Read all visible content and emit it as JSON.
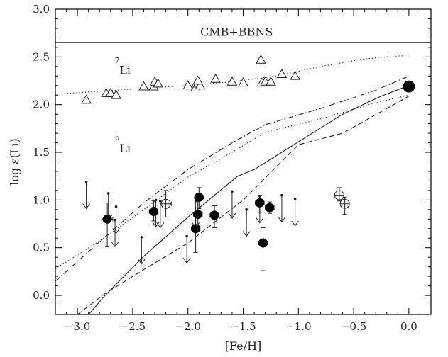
{
  "chart_data": {
    "type": "scatter",
    "xlabel": "[Fe/H]",
    "ylabel": "log ε(Li)",
    "xlim": [
      -3.2,
      0.2
    ],
    "ylim": [
      -0.2,
      3.0
    ],
    "xticks": [
      -3.0,
      -2.5,
      -2.0,
      -1.5,
      -1.0,
      -0.5,
      0.0
    ],
    "xtick_labels": [
      "−3.0",
      "−2.5",
      "−2.0",
      "−1.5",
      "−1.0",
      "−0.5",
      "0.0"
    ],
    "yticks": [
      0.0,
      0.5,
      1.0,
      1.5,
      2.0,
      2.5,
      3.0
    ],
    "ytick_labels": [
      "0.0",
      "0.5",
      "1.0",
      "1.5",
      "2.0",
      "2.5",
      "3.0"
    ],
    "annotations": {
      "cmb": "CMB+BBNS",
      "li7_mass": "7",
      "li7_sym": "Li",
      "li6_mass": "6",
      "li6_sym": "Li"
    },
    "cmb_level": 2.65,
    "li7_triangles": [
      [
        -2.92,
        2.05
      ],
      [
        -2.74,
        2.12
      ],
      [
        -2.7,
        2.12
      ],
      [
        -2.65,
        2.1
      ],
      [
        -2.4,
        2.19
      ],
      [
        -2.31,
        2.19
      ],
      [
        -2.3,
        2.24
      ],
      [
        -2.27,
        2.22
      ],
      [
        -2.0,
        2.2
      ],
      [
        -1.93,
        2.18
      ],
      [
        -1.91,
        2.22
      ],
      [
        -1.89,
        2.2
      ],
      [
        -1.91,
        2.25
      ],
      [
        -1.75,
        2.27
      ],
      [
        -1.6,
        2.24
      ],
      [
        -1.5,
        2.23
      ],
      [
        -1.34,
        2.47
      ],
      [
        -1.33,
        2.23
      ],
      [
        -1.3,
        2.24
      ],
      [
        -1.25,
        2.24
      ],
      [
        -1.15,
        2.32
      ],
      [
        -1.03,
        2.3
      ]
    ],
    "li6_filled": [
      {
        "x": -2.73,
        "y": 0.8,
        "xerr": 0.05,
        "yup": 0.17,
        "ydn": 0.29
      },
      {
        "x": -2.31,
        "y": 0.88,
        "xerr": 0.04,
        "yup": 0.11,
        "ydn": 0.1
      },
      {
        "x": -1.93,
        "y": 0.7,
        "xerr": 0.04,
        "yup": 0.09,
        "ydn": 0.25
      },
      {
        "x": -1.91,
        "y": 0.85,
        "xerr": 0.04,
        "yup": 0.15,
        "ydn": 0.18
      },
      {
        "x": -1.9,
        "y": 1.03,
        "xerr": 0.04,
        "yup": 0.1,
        "ydn": 0.12
      },
      {
        "x": -1.76,
        "y": 0.84,
        "xerr": 0.04,
        "yup": 0.1,
        "ydn": 0.13
      },
      {
        "x": -1.35,
        "y": 0.97,
        "xerr": 0.04,
        "yup": 0.08,
        "ydn": 0.1
      },
      {
        "x": -1.26,
        "y": 0.92,
        "xerr": 0.04,
        "yup": 0.06,
        "ydn": 0.06
      },
      {
        "x": -1.32,
        "y": 0.55,
        "xerr": 0.04,
        "yup": 0.16,
        "ydn": 0.29
      }
    ],
    "li6_open": [
      {
        "x": -2.2,
        "y": 0.96,
        "xerr": 0.05,
        "yup": 0.14,
        "ydn": 0.14
      },
      {
        "x": -0.63,
        "y": 1.05,
        "xerr": 0.04,
        "yup": 0.08,
        "ydn": 0.06
      },
      {
        "x": -0.58,
        "y": 0.96,
        "xerr": 0.04,
        "yup": 0.07,
        "ydn": 0.11
      }
    ],
    "li6_upper_limits": [
      [
        -2.92,
        1.19
      ],
      [
        -2.72,
        1.07
      ],
      [
        -2.66,
        0.79
      ],
      [
        -2.65,
        0.93
      ],
      [
        -2.42,
        0.61
      ],
      [
        -2.29,
        1.0
      ],
      [
        -2.25,
        0.99
      ],
      [
        -2.01,
        0.62
      ],
      [
        -1.93,
        0.99
      ],
      [
        -1.6,
        1.09
      ],
      [
        -1.47,
        0.9
      ],
      [
        -1.35,
        1.04
      ],
      [
        -1.15,
        1.05
      ],
      [
        -1.03,
        1.01
      ]
    ],
    "sun": [
      0.0,
      2.19
    ],
    "series": [
      {
        "style": "solid",
        "x": [
          -2.9,
          -2.75,
          -2.4,
          -2.0,
          -1.55,
          -1.4,
          -0.6,
          -0.25,
          0.0
        ],
        "y": [
          -0.2,
          0.0,
          0.41,
          0.82,
          1.25,
          1.32,
          1.9,
          2.09,
          2.2
        ]
      },
      {
        "style": "dashed",
        "x": [
          -3.0,
          -2.75,
          -2.4,
          -2.0,
          -1.5,
          -1.0,
          -0.6,
          0.0
        ],
        "y": [
          -0.2,
          0.02,
          0.27,
          0.55,
          1.0,
          1.58,
          1.7,
          2.09
        ]
      },
      {
        "style": "dotted",
        "x": [
          -3.2,
          -2.8,
          -2.4,
          -2.0,
          -1.6,
          -1.3,
          -0.8,
          -0.3,
          0.0
        ],
        "y": [
          0.28,
          0.57,
          0.9,
          1.24,
          1.5,
          1.71,
          1.85,
          2.02,
          2.1
        ]
      },
      {
        "style": "dashdot",
        "x": [
          -3.2,
          -2.8,
          -2.4,
          -2.0,
          -1.6,
          -1.3,
          -0.8,
          -0.3,
          0.0
        ],
        "y": [
          0.15,
          0.56,
          0.97,
          1.32,
          1.6,
          1.79,
          1.96,
          2.15,
          2.3
        ]
      },
      {
        "style": "dotted",
        "x": [
          -3.2,
          -2.8,
          -2.4,
          -2.0,
          -1.6,
          -1.2,
          -0.8,
          -0.4,
          -0.1,
          0.0
        ],
        "y": [
          2.11,
          2.14,
          2.17,
          2.2,
          2.24,
          2.3,
          2.4,
          2.48,
          2.51,
          2.51
        ]
      }
    ]
  }
}
